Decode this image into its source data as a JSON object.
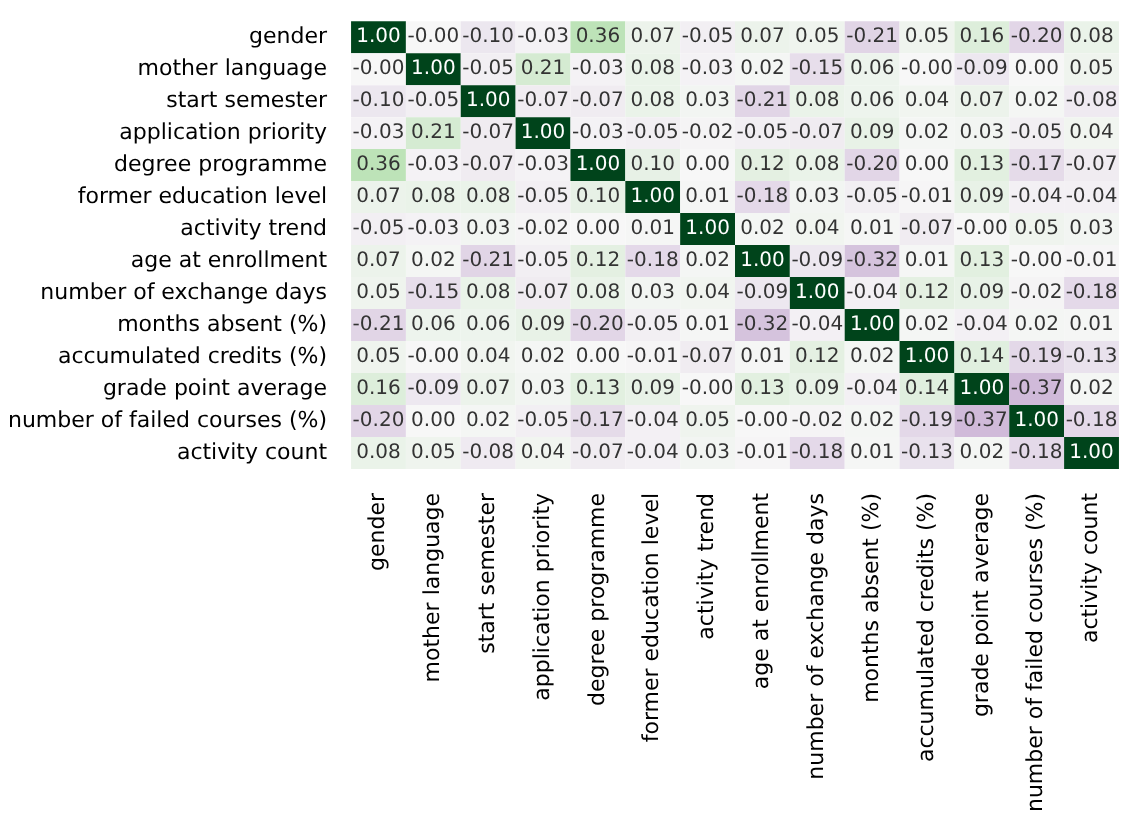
{
  "chart_data": {
    "type": "heatmap",
    "categories": [
      "gender",
      "mother language",
      "start semester",
      "application priority",
      "degree programme",
      "former education level",
      "activity trend",
      "age at enrollment",
      "number of exchange days",
      "months absent (%)",
      "accumulated credits (%)",
      "grade point average",
      "number of failed courses (%)",
      "activity count"
    ],
    "y_categories": [
      "gender",
      "mother language",
      "start semester",
      "application priority",
      "degree programme",
      "former education level",
      "activity trend",
      "age at enrollment",
      "number of exchange days",
      "months absent (%)",
      "accumulated credits (%)",
      "grade point average",
      "number of failed courses (%)",
      "activity count"
    ],
    "cells": [
      [
        1.0,
        0,
        -0.1,
        -0.03,
        0.36,
        0.07,
        -0.05,
        0.07,
        0.05,
        -0.21,
        0.05,
        0.16,
        -0.2,
        0.08
      ],
      [
        0,
        1.0,
        -0.05,
        0.21,
        -0.03,
        0.08,
        -0.03,
        0.02,
        -0.15,
        0.06,
        0,
        -0.09,
        0.0,
        0.05
      ],
      [
        -0.1,
        -0.05,
        1.0,
        -0.07,
        -0.07,
        0.08,
        0.03,
        -0.21,
        0.08,
        0.06,
        0.04,
        0.07,
        0.02,
        -0.08
      ],
      [
        -0.03,
        0.21,
        -0.07,
        1.0,
        -0.03,
        -0.05,
        -0.02,
        -0.05,
        -0.07,
        0.09,
        0.02,
        0.03,
        -0.05,
        0.04
      ],
      [
        0.36,
        -0.03,
        -0.07,
        -0.03,
        1.0,
        0.1,
        0.0,
        0.12,
        0.08,
        -0.2,
        0.0,
        0.13,
        -0.17,
        -0.07
      ],
      [
        0.07,
        0.08,
        0.08,
        -0.05,
        0.1,
        1.0,
        0.01,
        -0.18,
        0.03,
        -0.05,
        -0.01,
        0.09,
        -0.04,
        -0.04
      ],
      [
        -0.05,
        -0.03,
        0.03,
        -0.02,
        0.0,
        0.01,
        1.0,
        0.02,
        0.04,
        0.01,
        -0.07,
        0,
        0.05,
        0.03
      ],
      [
        0.07,
        0.02,
        -0.21,
        -0.05,
        0.12,
        -0.18,
        0.02,
        1.0,
        -0.09,
        -0.32,
        0.01,
        0.13,
        0,
        -0.01
      ],
      [
        0.05,
        -0.15,
        0.08,
        -0.07,
        0.08,
        0.03,
        0.04,
        -0.09,
        1.0,
        -0.04,
        0.12,
        0.09,
        -0.02,
        -0.18
      ],
      [
        -0.21,
        0.06,
        0.06,
        0.09,
        -0.2,
        -0.05,
        0.01,
        -0.32,
        -0.04,
        1.0,
        0.02,
        -0.04,
        0.02,
        0.01
      ],
      [
        0.05,
        0,
        0.04,
        0.02,
        0.0,
        -0.01,
        -0.07,
        0.01,
        0.12,
        0.02,
        1.0,
        0.14,
        -0.19,
        -0.13
      ],
      [
        0.16,
        -0.09,
        0.07,
        0.03,
        0.13,
        0.09,
        0,
        0.13,
        0.09,
        -0.04,
        0.14,
        1.0,
        -0.37,
        0.02
      ],
      [
        -0.2,
        0.0,
        0.02,
        -0.05,
        -0.17,
        -0.04,
        0.05,
        0,
        -0.02,
        0.02,
        -0.19,
        -0.37,
        1.0,
        -0.18
      ],
      [
        0.08,
        0.05,
        -0.08,
        0.04,
        -0.07,
        -0.04,
        0.03,
        -0.01,
        -0.18,
        0.01,
        -0.13,
        0.02,
        -0.18,
        1.0
      ]
    ],
    "cell_labels": [
      [
        "1.00",
        "-0.00",
        "-0.10",
        "-0.03",
        "0.36",
        "0.07",
        "-0.05",
        "0.07",
        "0.05",
        "-0.21",
        "0.05",
        "0.16",
        "-0.20",
        "0.08"
      ],
      [
        "-0.00",
        "1.00",
        "-0.05",
        "0.21",
        "-0.03",
        "0.08",
        "-0.03",
        "0.02",
        "-0.15",
        "0.06",
        "-0.00",
        "-0.09",
        "0.00",
        "0.05"
      ],
      [
        "-0.10",
        "-0.05",
        "1.00",
        "-0.07",
        "-0.07",
        "0.08",
        "0.03",
        "-0.21",
        "0.08",
        "0.06",
        "0.04",
        "0.07",
        "0.02",
        "-0.08"
      ],
      [
        "-0.03",
        "0.21",
        "-0.07",
        "1.00",
        "-0.03",
        "-0.05",
        "-0.02",
        "-0.05",
        "-0.07",
        "0.09",
        "0.02",
        "0.03",
        "-0.05",
        "0.04"
      ],
      [
        "0.36",
        "-0.03",
        "-0.07",
        "-0.03",
        "1.00",
        "0.10",
        "0.00",
        "0.12",
        "0.08",
        "-0.20",
        "0.00",
        "0.13",
        "-0.17",
        "-0.07"
      ],
      [
        "0.07",
        "0.08",
        "0.08",
        "-0.05",
        "0.10",
        "1.00",
        "0.01",
        "-0.18",
        "0.03",
        "-0.05",
        "-0.01",
        "0.09",
        "-0.04",
        "-0.04"
      ],
      [
        "-0.05",
        "-0.03",
        "0.03",
        "-0.02",
        "0.00",
        "0.01",
        "1.00",
        "0.02",
        "0.04",
        "0.01",
        "-0.07",
        "-0.00",
        "0.05",
        "0.03"
      ],
      [
        "0.07",
        "0.02",
        "-0.21",
        "-0.05",
        "0.12",
        "-0.18",
        "0.02",
        "1.00",
        "-0.09",
        "-0.32",
        "0.01",
        "0.13",
        "-0.00",
        "-0.01"
      ],
      [
        "0.05",
        "-0.15",
        "0.08",
        "-0.07",
        "0.08",
        "0.03",
        "0.04",
        "-0.09",
        "1.00",
        "-0.04",
        "0.12",
        "0.09",
        "-0.02",
        "-0.18"
      ],
      [
        "-0.21",
        "0.06",
        "0.06",
        "0.09",
        "-0.20",
        "-0.05",
        "0.01",
        "-0.32",
        "-0.04",
        "1.00",
        "0.02",
        "-0.04",
        "0.02",
        "0.01"
      ],
      [
        "0.05",
        "-0.00",
        "0.04",
        "0.02",
        "0.00",
        "-0.01",
        "-0.07",
        "0.01",
        "0.12",
        "0.02",
        "1.00",
        "0.14",
        "-0.19",
        "-0.13"
      ],
      [
        "0.16",
        "-0.09",
        "0.07",
        "0.03",
        "0.13",
        "0.09",
        "-0.00",
        "0.13",
        "0.09",
        "-0.04",
        "0.14",
        "1.00",
        "-0.37",
        "0.02"
      ],
      [
        "-0.20",
        "0.00",
        "0.02",
        "-0.05",
        "-0.17",
        "-0.04",
        "0.05",
        "-0.00",
        "-0.02",
        "0.02",
        "-0.19",
        "-0.37",
        "1.00",
        "-0.18"
      ],
      [
        "0.08",
        "0.05",
        "-0.08",
        "0.04",
        "-0.07",
        "-0.04",
        "0.03",
        "-0.01",
        "-0.18",
        "0.01",
        "-0.13",
        "0.02",
        "-0.18",
        "1.00"
      ]
    ]
  }
}
